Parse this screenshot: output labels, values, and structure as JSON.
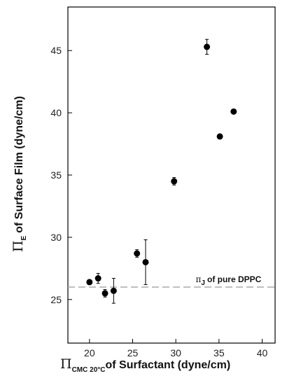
{
  "chart_data": {
    "type": "scatter",
    "xlim": [
      17.5,
      41.5
    ],
    "ylim": [
      21.5,
      48.5
    ],
    "xticks": [
      20,
      25,
      30,
      35,
      40
    ],
    "yticks": [
      25,
      30,
      35,
      40,
      45
    ],
    "grid": false,
    "x_label": {
      "symbol": "Π",
      "subscript": "CMC 20°C",
      "text": "of Surfactant (dyne/cm)"
    },
    "y_label": {
      "symbol": "Π",
      "subscript": "E",
      "text": "of Surface Film (dyne/cm)"
    },
    "points": [
      {
        "x": 20.0,
        "y": 26.4
      },
      {
        "x": 21.0,
        "y": 26.7,
        "err": 0.4
      },
      {
        "x": 21.8,
        "y": 25.5,
        "err": 0.3
      },
      {
        "x": 22.8,
        "y": 25.7,
        "err": 1.0
      },
      {
        "x": 25.5,
        "y": 28.7,
        "err": 0.3
      },
      {
        "x": 26.5,
        "y": 28.0,
        "err": 1.8
      },
      {
        "x": 29.8,
        "y": 34.5,
        "err": 0.3
      },
      {
        "x": 33.6,
        "y": 45.3,
        "err": 0.6
      },
      {
        "x": 35.1,
        "y": 38.1
      },
      {
        "x": 36.7,
        "y": 40.1
      }
    ],
    "reference_line": {
      "y": 26.0,
      "style": "dashed",
      "color": "#aaaaaa",
      "label_symbol": "π",
      "label_subscript": "J",
      "label_text": "of pure DPPC"
    }
  }
}
